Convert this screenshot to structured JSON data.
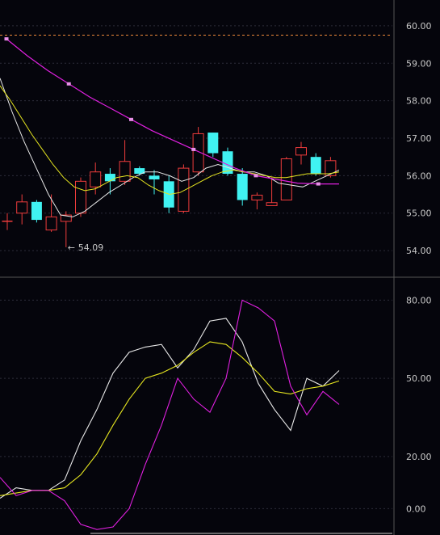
{
  "chart_data": [
    {
      "type": "candlestick",
      "panel": "price",
      "y_ticks": [
        "60.00",
        "59.00",
        "58.00",
        "57.00",
        "56.00",
        "55.00",
        "54.00"
      ],
      "y_tick_values": [
        60,
        59,
        58,
        57,
        56,
        55,
        54
      ],
      "ylim": [
        53.7,
        60.3
      ],
      "reference_line": 59.75,
      "low_annotation": {
        "label": "54.09",
        "value": 54.09,
        "candle_index": 4
      },
      "candles": [
        {
          "o": 54.8,
          "h": 55.0,
          "l": 54.55,
          "c": 54.8,
          "dir": "flat"
        },
        {
          "o": 55.0,
          "h": 55.5,
          "l": 54.7,
          "c": 55.3,
          "dir": "up"
        },
        {
          "o": 55.3,
          "h": 55.35,
          "l": 54.75,
          "c": 54.82,
          "dir": "down"
        },
        {
          "o": 54.55,
          "h": 55.5,
          "l": 54.5,
          "c": 54.9,
          "dir": "up"
        },
        {
          "o": 54.78,
          "h": 55.05,
          "l": 54.09,
          "c": 54.95,
          "dir": "up"
        },
        {
          "o": 55.0,
          "h": 55.95,
          "l": 54.9,
          "c": 55.85,
          "dir": "up"
        },
        {
          "o": 55.7,
          "h": 56.35,
          "l": 55.5,
          "c": 56.1,
          "dir": "up"
        },
        {
          "o": 56.05,
          "h": 56.2,
          "l": 55.5,
          "c": 55.85,
          "dir": "down"
        },
        {
          "o": 55.85,
          "h": 56.95,
          "l": 55.75,
          "c": 56.38,
          "dir": "up"
        },
        {
          "o": 56.2,
          "h": 56.25,
          "l": 56.0,
          "c": 56.05,
          "dir": "down"
        },
        {
          "o": 56.0,
          "h": 56.15,
          "l": 55.5,
          "c": 55.9,
          "dir": "down"
        },
        {
          "o": 55.85,
          "h": 56.0,
          "l": 55.0,
          "c": 55.15,
          "dir": "down"
        },
        {
          "o": 55.05,
          "h": 56.3,
          "l": 55.0,
          "c": 56.2,
          "dir": "up"
        },
        {
          "o": 56.1,
          "h": 57.3,
          "l": 56.0,
          "c": 57.12,
          "dir": "up"
        },
        {
          "o": 57.15,
          "h": 57.15,
          "l": 56.5,
          "c": 56.6,
          "dir": "down"
        },
        {
          "o": 56.65,
          "h": 56.75,
          "l": 56.0,
          "c": 56.05,
          "dir": "down"
        },
        {
          "o": 56.05,
          "h": 56.2,
          "l": 55.2,
          "c": 55.35,
          "dir": "down"
        },
        {
          "o": 55.35,
          "h": 55.55,
          "l": 55.1,
          "c": 55.48,
          "dir": "up"
        },
        {
          "o": 55.2,
          "h": 55.95,
          "l": 55.2,
          "c": 55.28,
          "dir": "up"
        },
        {
          "o": 55.35,
          "h": 56.5,
          "l": 55.35,
          "c": 56.45,
          "dir": "up"
        },
        {
          "o": 56.55,
          "h": 56.9,
          "l": 56.3,
          "c": 56.75,
          "dir": "up"
        },
        {
          "o": 56.5,
          "h": 56.6,
          "l": 56.0,
          "c": 56.05,
          "dir": "down"
        },
        {
          "o": 56.0,
          "h": 56.5,
          "l": 55.95,
          "c": 56.4,
          "dir": "up"
        }
      ],
      "ma_white": [
        58.6,
        57.7,
        56.9,
        56.2,
        55.5,
        54.95,
        54.9,
        55.05,
        55.3,
        55.55,
        55.75,
        55.95,
        56.1,
        56.1,
        56.0,
        55.85,
        55.95,
        56.2,
        56.3,
        56.2,
        56.1,
        56.1,
        56.0,
        55.8,
        55.75,
        55.7,
        55.85,
        56.0,
        56.15
      ],
      "ma_yellow": [
        58.4,
        58.0,
        57.55,
        57.1,
        56.7,
        56.3,
        55.95,
        55.7,
        55.6,
        55.65,
        55.8,
        55.95,
        56.0,
        55.95,
        55.75,
        55.6,
        55.5,
        55.55,
        55.7,
        55.85,
        56.0,
        56.1,
        56.15,
        56.1,
        56.05,
        56.0,
        55.95,
        55.95,
        56.0,
        56.05,
        56.05,
        56.05,
        56.1
      ],
      "ma_magenta": [
        59.65,
        59.2,
        58.8,
        58.45,
        58.1,
        57.8,
        57.5,
        57.2,
        56.95,
        56.7,
        56.45,
        56.2,
        56.0,
        55.9,
        55.8,
        55.78,
        55.78
      ],
      "ma_magenta_markers": [
        0,
        3,
        6,
        9,
        12,
        15
      ]
    },
    {
      "type": "line",
      "panel": "oscillator",
      "y_ticks": [
        "80.00",
        "50.00",
        "20.00",
        "0.00"
      ],
      "y_tick_values": [
        80,
        50,
        20,
        0
      ],
      "ylim": [
        -7,
        86
      ],
      "series": [
        {
          "color": "#e8e8e8",
          "values": [
            4,
            8,
            7,
            7,
            11,
            26,
            38,
            52,
            60,
            62,
            63,
            54,
            61,
            72,
            73,
            64,
            48,
            38,
            30,
            50,
            47,
            53
          ]
        },
        {
          "color": "#e6e620",
          "values": [
            5,
            6,
            7,
            7,
            8,
            13,
            21,
            32,
            42,
            50,
            52,
            55,
            60,
            64,
            63,
            58,
            52,
            45,
            44,
            46,
            47,
            49
          ]
        },
        {
          "color": "#e020e0",
          "values": [
            12,
            5,
            7,
            7,
            3,
            -6,
            -8,
            -7,
            0,
            17,
            32,
            50,
            42,
            37,
            50,
            80,
            77,
            72,
            47,
            36,
            45,
            40
          ]
        }
      ]
    }
  ],
  "colors": {
    "up": "#ef3c3c",
    "down": "#40f2f2",
    "flat": "#ef3c3c",
    "ma_white": "#e8e8e8",
    "ma_yellow": "#e6e620",
    "ma_magenta": "#e020e0",
    "reference_line": "#ef8a3a",
    "grid": "#2c2c3a",
    "border": "#555555"
  }
}
